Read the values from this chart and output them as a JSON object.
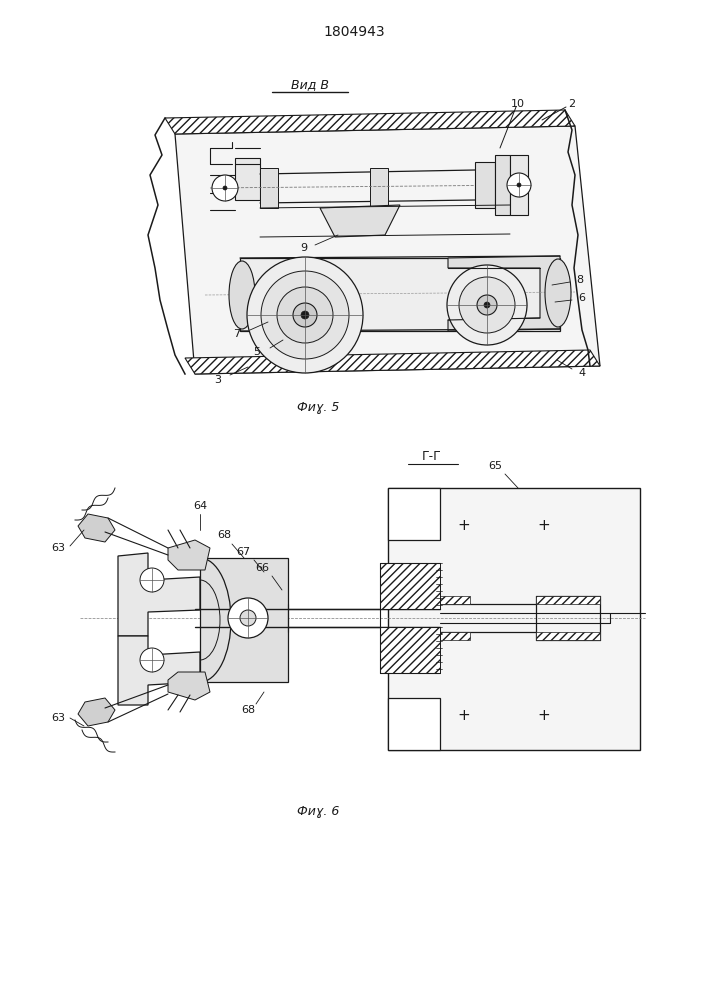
{
  "title": "1804943",
  "fig5_label": "Фиɣ. 5",
  "fig6_label": "Фиɣ. 6",
  "vid_label": "Вид В",
  "gg_label": "Г-Г",
  "line_color": "#1a1a1a"
}
